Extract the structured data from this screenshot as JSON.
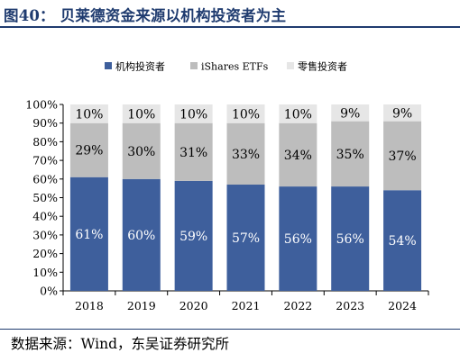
{
  "header": {
    "title": "图40：  贝莱德资金来源以机构投资者为主"
  },
  "footer": {
    "source": "数据来源：Wind，东吴证券研究所"
  },
  "colors": {
    "institutional": "#3e5f9c",
    "etf": "#bdbdbd",
    "retail": "#e6e6e6",
    "title": "#1f3b6f"
  },
  "chart_data": {
    "type": "bar",
    "stacked": true,
    "percent": true,
    "categories": [
      "2018",
      "2019",
      "2020",
      "2021",
      "2022",
      "2023",
      "2024"
    ],
    "series": [
      {
        "name": "机构投资者",
        "values": [
          61,
          60,
          59,
          57,
          56,
          56,
          54
        ]
      },
      {
        "name": "iShares ETFs",
        "values": [
          29,
          30,
          31,
          33,
          34,
          35,
          37
        ]
      },
      {
        "name": "零售投资者",
        "values": [
          10,
          10,
          10,
          10,
          10,
          9,
          9
        ]
      }
    ],
    "yticks": [
      "0%",
      "10%",
      "20%",
      "30%",
      "40%",
      "50%",
      "60%",
      "70%",
      "80%",
      "90%",
      "100%"
    ],
    "ylim": [
      0,
      100
    ],
    "grid": false,
    "legend_position": "top"
  }
}
